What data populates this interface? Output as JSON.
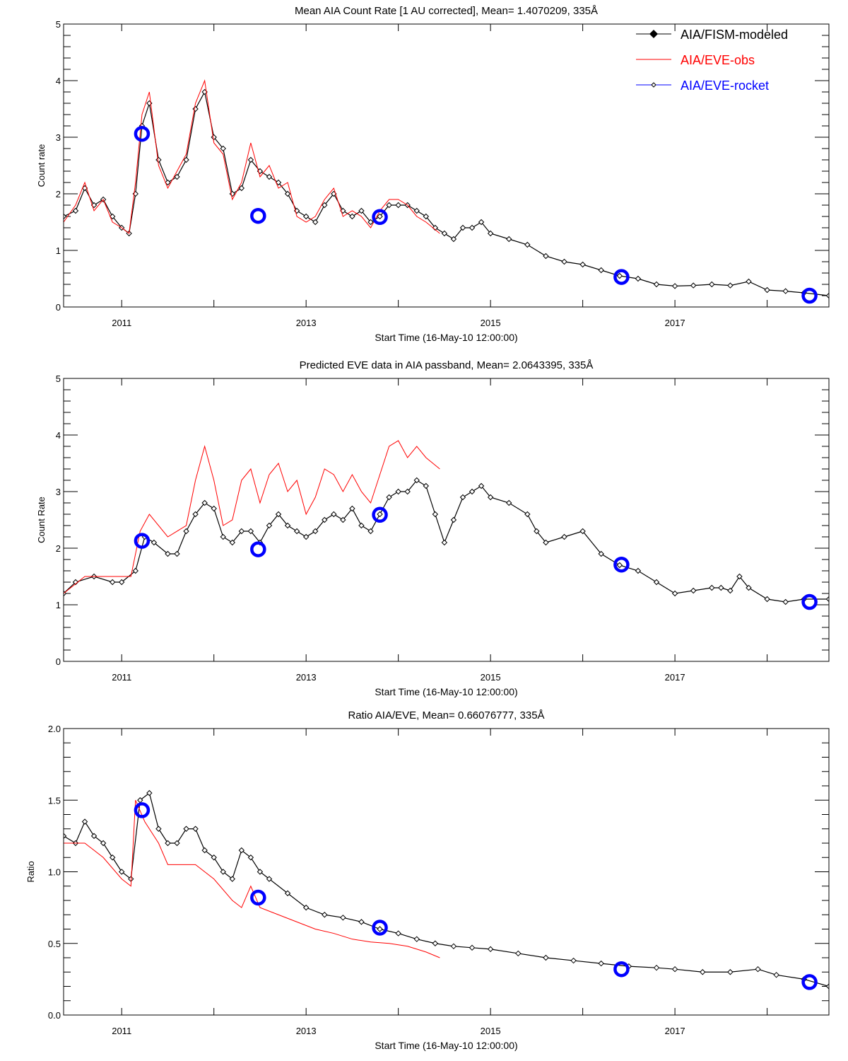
{
  "chart_data": [
    {
      "type": "line",
      "title": "Mean AIA Count Rate [1 AU corrected], Mean= 1.4070209, 335Å",
      "xlabel": "Start Time (16-May-10 12:00:00)",
      "ylabel": "Count rate",
      "xlim": [
        2010.37,
        2018.67
      ],
      "ylim": [
        0,
        5
      ],
      "x_ticks": [
        "2011",
        "2013",
        "2015",
        "2017"
      ],
      "y_ticks": [
        "0",
        "1",
        "2",
        "3",
        "4",
        "5"
      ],
      "legend": {
        "placement": "top-right",
        "entries": [
          {
            "label": "AIA/FISM-modeled",
            "color": "#000000"
          },
          {
            "label": "AIA/EVE-obs",
            "color": "#ff0000"
          },
          {
            "label": "AIA/EVE-rocket",
            "color": "#0000ff"
          }
        ]
      },
      "series": [
        {
          "name": "AIA/FISM-modeled",
          "color": "#000000",
          "x": [
            2010.37,
            2010.5,
            2010.6,
            2010.7,
            2010.8,
            2010.9,
            2011.0,
            2011.08,
            2011.15,
            2011.22,
            2011.3,
            2011.4,
            2011.5,
            2011.6,
            2011.7,
            2011.8,
            2011.9,
            2012.0,
            2012.1,
            2012.2,
            2012.3,
            2012.4,
            2012.5,
            2012.6,
            2012.7,
            2012.8,
            2012.9,
            2013.0,
            2013.1,
            2013.2,
            2013.3,
            2013.4,
            2013.5,
            2013.6,
            2013.7,
            2013.8,
            2013.9,
            2014.0,
            2014.1,
            2014.2,
            2014.3,
            2014.4,
            2014.5,
            2014.6,
            2014.7,
            2014.8,
            2014.9,
            2015.0,
            2015.2,
            2015.4,
            2015.6,
            2015.8,
            2016.0,
            2016.2,
            2016.4,
            2016.6,
            2016.8,
            2017.0,
            2017.2,
            2017.4,
            2017.6,
            2017.8,
            2018.0,
            2018.2,
            2018.4,
            2018.67
          ],
          "y": [
            1.6,
            1.7,
            2.1,
            1.8,
            1.9,
            1.6,
            1.4,
            1.3,
            2.0,
            3.2,
            3.6,
            2.6,
            2.2,
            2.3,
            2.6,
            3.5,
            3.8,
            3.0,
            2.8,
            2.0,
            2.1,
            2.6,
            2.4,
            2.3,
            2.2,
            2.0,
            1.7,
            1.6,
            1.5,
            1.8,
            2.0,
            1.7,
            1.6,
            1.7,
            1.5,
            1.6,
            1.8,
            1.8,
            1.8,
            1.7,
            1.6,
            1.4,
            1.3,
            1.2,
            1.4,
            1.4,
            1.5,
            1.3,
            1.2,
            1.1,
            0.9,
            0.8,
            0.75,
            0.65,
            0.55,
            0.5,
            0.4,
            0.37,
            0.38,
            0.4,
            0.38,
            0.45,
            0.3,
            0.28,
            0.25,
            0.2
          ]
        },
        {
          "name": "AIA/EVE-obs",
          "color": "#ff0000",
          "x": [
            2010.37,
            2010.5,
            2010.6,
            2010.7,
            2010.8,
            2010.9,
            2011.0,
            2011.08,
            2011.15,
            2011.22,
            2011.3,
            2011.4,
            2011.5,
            2011.6,
            2011.7,
            2011.8,
            2011.9,
            2012.0,
            2012.1,
            2012.2,
            2012.3,
            2012.4,
            2012.5,
            2012.6,
            2012.7,
            2012.8,
            2012.9,
            2013.0,
            2013.1,
            2013.2,
            2013.3,
            2013.4,
            2013.5,
            2013.6,
            2013.7,
            2013.8,
            2013.9,
            2014.0,
            2014.1,
            2014.2,
            2014.3,
            2014.45
          ],
          "y": [
            1.5,
            1.8,
            2.2,
            1.7,
            1.9,
            1.5,
            1.4,
            1.3,
            2.2,
            3.4,
            3.8,
            2.5,
            2.1,
            2.4,
            2.7,
            3.6,
            4.0,
            2.9,
            2.7,
            1.9,
            2.2,
            2.9,
            2.3,
            2.5,
            2.1,
            2.2,
            1.6,
            1.5,
            1.6,
            1.9,
            2.1,
            1.6,
            1.7,
            1.6,
            1.4,
            1.7,
            1.9,
            1.9,
            1.8,
            1.6,
            1.5,
            1.3
          ]
        },
        {
          "name": "AIA/EVE-rocket",
          "color": "#0000ff",
          "x": [
            2011.22,
            2012.48,
            2013.8,
            2016.42,
            2018.46
          ],
          "y": [
            3.06,
            1.61,
            1.59,
            0.53,
            0.2
          ]
        }
      ]
    },
    {
      "type": "line",
      "title": "Predicted EVE data in AIA passband, Mean= 2.0643395, 335Å",
      "xlabel": "Start Time (16-May-10 12:00:00)",
      "ylabel": "Count Rate",
      "xlim": [
        2010.37,
        2018.67
      ],
      "ylim": [
        0,
        5
      ],
      "x_ticks": [
        "2011",
        "2013",
        "2015",
        "2017"
      ],
      "y_ticks": [
        "0",
        "1",
        "2",
        "3",
        "4",
        "5"
      ],
      "series": [
        {
          "name": "AIA/FISM-modeled",
          "color": "#000000",
          "x": [
            2010.37,
            2010.5,
            2010.7,
            2010.9,
            2011.0,
            2011.15,
            2011.25,
            2011.35,
            2011.5,
            2011.6,
            2011.7,
            2011.8,
            2011.9,
            2012.0,
            2012.1,
            2012.2,
            2012.3,
            2012.4,
            2012.5,
            2012.6,
            2012.7,
            2012.8,
            2012.9,
            2013.0,
            2013.1,
            2013.2,
            2013.3,
            2013.4,
            2013.5,
            2013.6,
            2013.7,
            2013.8,
            2013.9,
            2014.0,
            2014.1,
            2014.2,
            2014.3,
            2014.4,
            2014.5,
            2014.6,
            2014.7,
            2014.8,
            2014.9,
            2015.0,
            2015.2,
            2015.4,
            2015.5,
            2015.6,
            2015.8,
            2016.0,
            2016.2,
            2016.4,
            2016.6,
            2016.8,
            2017.0,
            2017.2,
            2017.4,
            2017.5,
            2017.6,
            2017.7,
            2017.8,
            2018.0,
            2018.2,
            2018.4,
            2018.67
          ],
          "y": [
            1.2,
            1.4,
            1.5,
            1.4,
            1.4,
            1.6,
            2.2,
            2.1,
            1.9,
            1.9,
            2.3,
            2.6,
            2.8,
            2.7,
            2.2,
            2.1,
            2.3,
            2.3,
            2.1,
            2.4,
            2.6,
            2.4,
            2.3,
            2.2,
            2.3,
            2.5,
            2.6,
            2.5,
            2.7,
            2.4,
            2.3,
            2.6,
            2.9,
            3.0,
            3.0,
            3.2,
            3.1,
            2.6,
            2.1,
            2.5,
            2.9,
            3.0,
            3.1,
            2.9,
            2.8,
            2.6,
            2.3,
            2.1,
            2.2,
            2.3,
            1.9,
            1.7,
            1.6,
            1.4,
            1.2,
            1.25,
            1.3,
            1.3,
            1.25,
            1.5,
            1.3,
            1.1,
            1.05,
            1.1,
            1.1
          ]
        },
        {
          "name": "AIA/EVE-obs",
          "color": "#ff0000",
          "x": [
            2010.37,
            2010.6,
            2010.9,
            2011.1,
            2011.2,
            2011.3,
            2011.5,
            2011.7,
            2011.8,
            2011.9,
            2012.0,
            2012.1,
            2012.2,
            2012.3,
            2012.4,
            2012.5,
            2012.6,
            2012.7,
            2012.8,
            2012.9,
            2013.0,
            2013.1,
            2013.2,
            2013.3,
            2013.4,
            2013.5,
            2013.6,
            2013.7,
            2013.8,
            2013.9,
            2014.0,
            2014.1,
            2014.2,
            2014.3,
            2014.45
          ],
          "y": [
            1.2,
            1.5,
            1.5,
            1.5,
            2.3,
            2.6,
            2.2,
            2.4,
            3.2,
            3.8,
            3.2,
            2.4,
            2.5,
            3.2,
            3.4,
            2.8,
            3.3,
            3.5,
            3.0,
            3.2,
            2.6,
            2.9,
            3.4,
            3.3,
            3.0,
            3.3,
            3.0,
            2.8,
            3.3,
            3.8,
            3.9,
            3.6,
            3.8,
            3.6,
            3.4
          ]
        },
        {
          "name": "AIA/EVE-rocket",
          "color": "#0000ff",
          "x": [
            2011.22,
            2012.48,
            2013.8,
            2016.42,
            2018.46
          ],
          "y": [
            2.13,
            1.98,
            2.59,
            1.71,
            1.05
          ]
        }
      ]
    },
    {
      "type": "line",
      "title": "Ratio AIA/EVE, Mean= 0.66076777, 335Å",
      "xlabel": "Start Time (16-May-10 12:00:00)",
      "ylabel": "Ratio",
      "xlim": [
        2010.37,
        2018.67
      ],
      "ylim": [
        0,
        2
      ],
      "x_ticks": [
        "2011",
        "2013",
        "2015",
        "2017"
      ],
      "y_ticks": [
        "0.0",
        "0.5",
        "1.0",
        "1.5",
        "2.0"
      ],
      "series": [
        {
          "name": "AIA/FISM-modeled",
          "color": "#000000",
          "x": [
            2010.37,
            2010.5,
            2010.6,
            2010.7,
            2010.8,
            2010.9,
            2011.0,
            2011.1,
            2011.2,
            2011.3,
            2011.4,
            2011.5,
            2011.6,
            2011.7,
            2011.8,
            2011.9,
            2012.0,
            2012.1,
            2012.2,
            2012.3,
            2012.4,
            2012.5,
            2012.6,
            2012.8,
            2013.0,
            2013.2,
            2013.4,
            2013.6,
            2013.8,
            2014.0,
            2014.2,
            2014.4,
            2014.6,
            2014.8,
            2015.0,
            2015.3,
            2015.6,
            2015.9,
            2016.2,
            2016.5,
            2016.8,
            2017.0,
            2017.3,
            2017.6,
            2017.9,
            2018.1,
            2018.4,
            2018.67
          ],
          "y": [
            1.25,
            1.2,
            1.35,
            1.25,
            1.2,
            1.1,
            1.0,
            0.95,
            1.5,
            1.55,
            1.3,
            1.2,
            1.2,
            1.3,
            1.3,
            1.15,
            1.1,
            1.0,
            0.95,
            1.15,
            1.1,
            1.0,
            0.95,
            0.85,
            0.75,
            0.7,
            0.68,
            0.65,
            0.6,
            0.57,
            0.53,
            0.5,
            0.48,
            0.47,
            0.46,
            0.43,
            0.4,
            0.38,
            0.36,
            0.34,
            0.33,
            0.32,
            0.3,
            0.3,
            0.32,
            0.28,
            0.25,
            0.2
          ]
        },
        {
          "name": "AIA/EVE-obs",
          "color": "#ff0000",
          "x": [
            2010.37,
            2010.6,
            2010.8,
            2011.0,
            2011.1,
            2011.15,
            2011.25,
            2011.4,
            2011.5,
            2011.6,
            2011.8,
            2012.0,
            2012.2,
            2012.3,
            2012.4,
            2012.5,
            2012.7,
            2012.9,
            2013.1,
            2013.3,
            2013.5,
            2013.7,
            2013.9,
            2014.1,
            2014.3,
            2014.45
          ],
          "y": [
            1.2,
            1.2,
            1.1,
            0.95,
            0.9,
            1.5,
            1.35,
            1.2,
            1.05,
            1.05,
            1.05,
            0.95,
            0.8,
            0.75,
            0.9,
            0.75,
            0.7,
            0.65,
            0.6,
            0.57,
            0.53,
            0.51,
            0.5,
            0.48,
            0.44,
            0.4
          ]
        },
        {
          "name": "AIA/EVE-rocket",
          "color": "#0000ff",
          "x": [
            2011.22,
            2012.48,
            2013.8,
            2016.42,
            2018.46
          ],
          "y": [
            1.43,
            0.82,
            0.61,
            0.32,
            0.23
          ]
        }
      ]
    }
  ]
}
